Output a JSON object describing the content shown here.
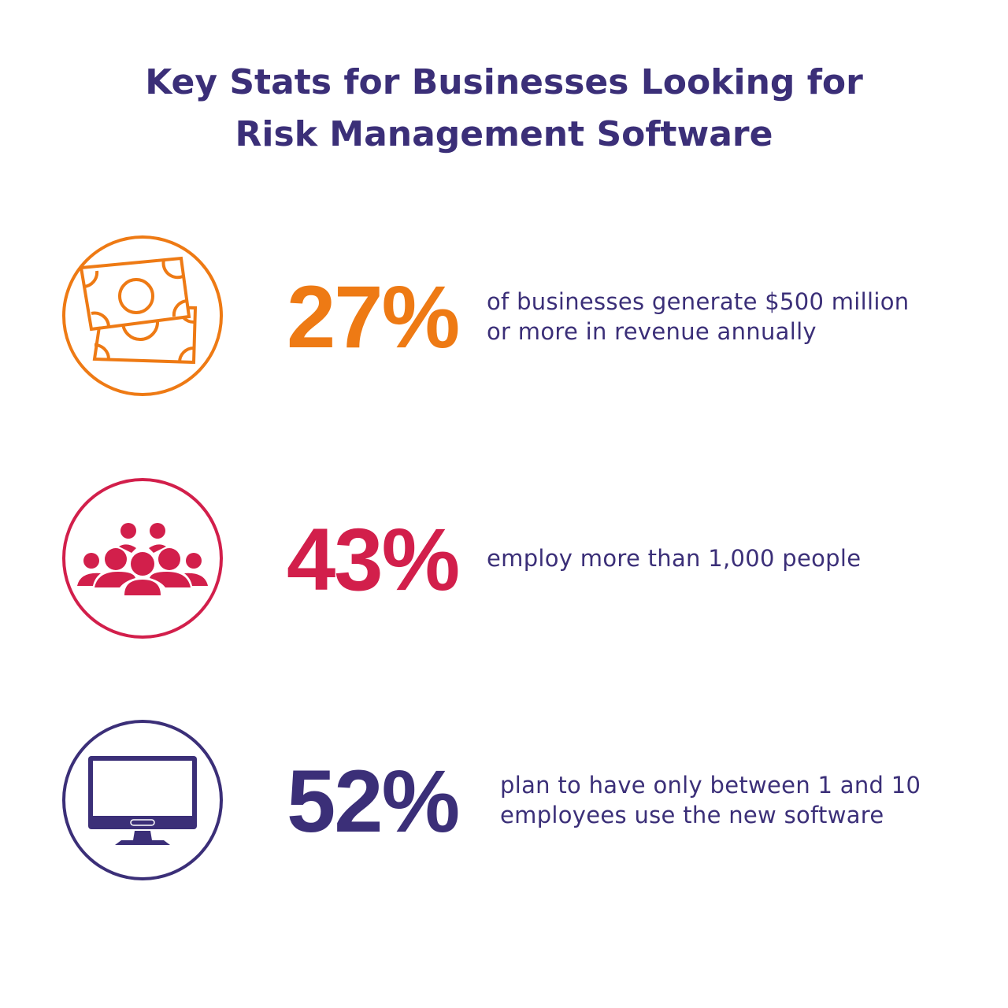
{
  "title": {
    "line1": "Key Stats for Businesses Looking for",
    "line2": "Risk Management Software"
  },
  "colors": {
    "title": "#3b2f78",
    "orange": "#ee7a14",
    "red": "#d21f4b",
    "purple": "#3b2f78"
  },
  "stats": [
    {
      "icon": "money-bills-icon",
      "value": "27%",
      "line1": "of businesses generate $500 million",
      "line2": "or more in revenue annually"
    },
    {
      "icon": "people-group-icon",
      "value": "43%",
      "line1": "employ more than 1,000 people",
      "line2": ""
    },
    {
      "icon": "computer-monitor-icon",
      "value": "52%",
      "line1": "plan to have only between 1 and 10",
      "line2": "employees use the new software"
    }
  ]
}
